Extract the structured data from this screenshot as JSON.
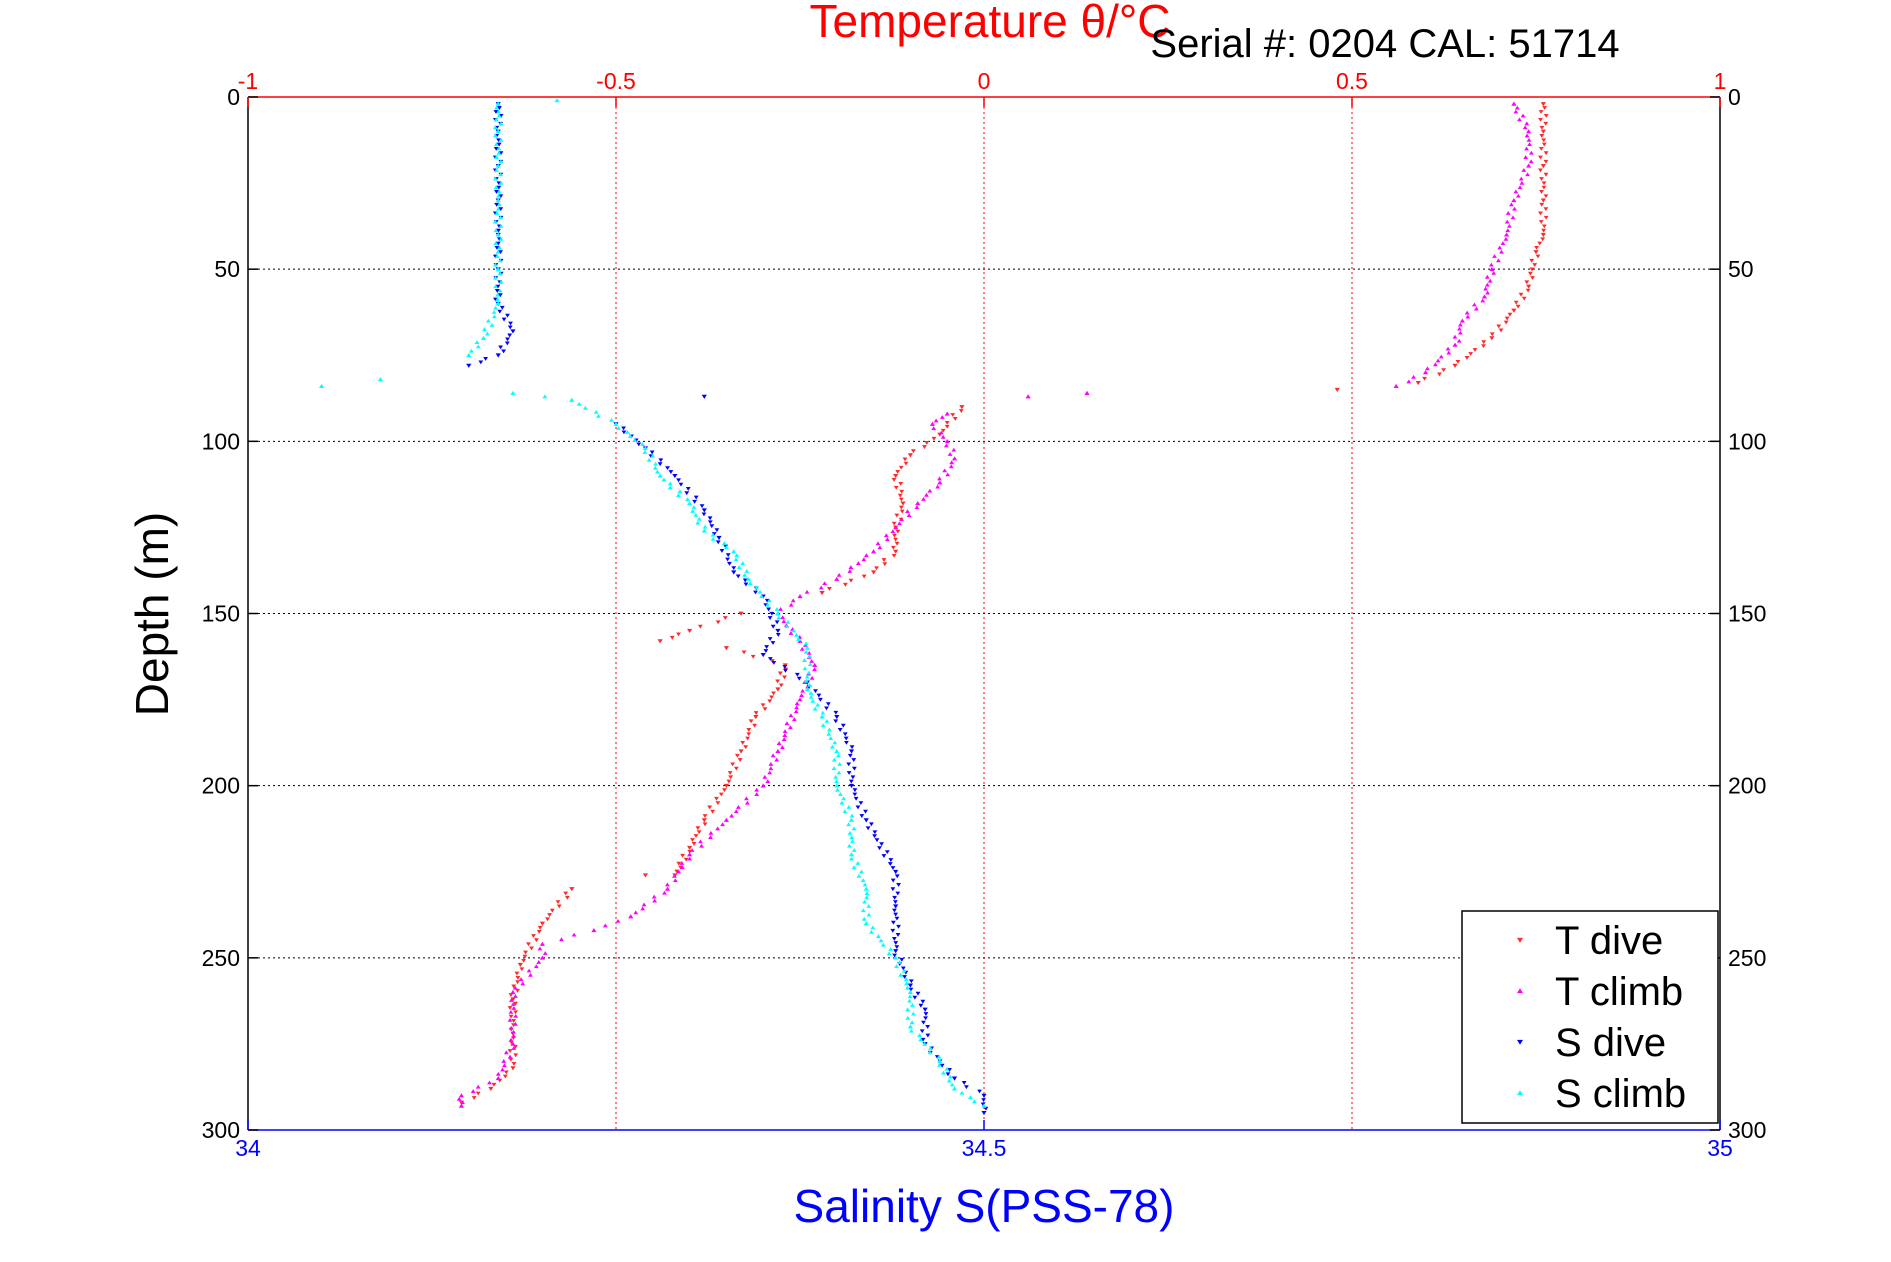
{
  "title_temperature": "Temperature θ/°C",
  "serial_label": "Serial #: 0204   CAL: 51714",
  "colors": {
    "temperature_axis": "#ff0000",
    "salinity_axis": "#0000ff",
    "t_dive": "#ff2a2a",
    "t_climb": "#ff00ff",
    "s_dive": "#0000ff",
    "s_climb": "#00ffff"
  },
  "chart_data": {
    "type": "scatter",
    "title": "Temperature θ/°C",
    "ylabel": "Depth (m)",
    "xlabel": "Salinity S(PSS-78)",
    "x_top": {
      "label": "Temperature θ/°C",
      "lim": [
        -1,
        1
      ],
      "ticks": [
        -1,
        -0.5,
        0,
        0.5,
        1
      ],
      "tick_labels": [
        "-1",
        "-0.5",
        "0",
        "0.5",
        "1"
      ]
    },
    "x_bottom": {
      "label": "Salinity S(PSS-78)",
      "lim": [
        34,
        35
      ],
      "ticks": [
        34,
        34.5,
        35
      ],
      "tick_labels": [
        "34",
        "34.5",
        "35"
      ]
    },
    "ylim": [
      300,
      0
    ],
    "yticks": [
      0,
      50,
      100,
      150,
      200,
      250,
      300
    ],
    "ytick_labels": [
      "0",
      "50",
      "100",
      "150",
      "200",
      "250",
      "300"
    ],
    "grid": true,
    "legend_position": "bottom-right",
    "series": [
      {
        "name": "T dive",
        "axis": "temperature",
        "marker": "triangle-down",
        "points": [
          [
            0.76,
            2
          ],
          [
            0.76,
            10
          ],
          [
            0.76,
            20
          ],
          [
            0.76,
            30
          ],
          [
            0.76,
            40
          ],
          [
            0.75,
            45
          ],
          [
            0.74,
            55
          ],
          [
            0.72,
            62
          ],
          [
            0.69,
            70
          ],
          [
            0.64,
            78
          ],
          [
            0.59,
            83
          ],
          [
            0.48,
            85
          ],
          [
            -0.03,
            90
          ],
          [
            -0.06,
            98
          ],
          [
            -0.1,
            104
          ],
          [
            -0.12,
            110
          ],
          [
            -0.11,
            118
          ],
          [
            -0.12,
            125
          ],
          [
            -0.12,
            132
          ],
          [
            -0.15,
            138
          ],
          [
            -0.22,
            144
          ],
          [
            -0.33,
            150
          ],
          [
            -0.4,
            155
          ],
          [
            -0.44,
            158
          ],
          [
            -0.35,
            160
          ],
          [
            -0.27,
            165
          ],
          [
            -0.28,
            172
          ],
          [
            -0.31,
            180
          ],
          [
            -0.33,
            190
          ],
          [
            -0.35,
            200
          ],
          [
            -0.38,
            210
          ],
          [
            -0.4,
            218
          ],
          [
            -0.42,
            226
          ],
          [
            -0.46,
            226
          ],
          [
            -0.56,
            230
          ],
          [
            -0.6,
            240
          ],
          [
            -0.63,
            252
          ],
          [
            -0.64,
            262
          ],
          [
            -0.64,
            272
          ],
          [
            -0.64,
            282
          ],
          [
            -0.67,
            288
          ],
          [
            -0.71,
            292
          ]
        ]
      },
      {
        "name": "T climb",
        "axis": "temperature",
        "marker": "triangle-up",
        "points": [
          [
            0.72,
            2
          ],
          [
            0.74,
            10
          ],
          [
            0.74,
            20
          ],
          [
            0.72,
            30
          ],
          [
            0.71,
            40
          ],
          [
            0.69,
            50
          ],
          [
            0.68,
            58
          ],
          [
            0.65,
            65
          ],
          [
            0.64,
            72
          ],
          [
            0.6,
            80
          ],
          [
            0.56,
            84
          ],
          [
            0.14,
            86
          ],
          [
            0.06,
            87
          ],
          [
            -0.05,
            92
          ],
          [
            -0.07,
            95
          ],
          [
            -0.05,
            100
          ],
          [
            -0.04,
            105
          ],
          [
            -0.06,
            112
          ],
          [
            -0.09,
            118
          ],
          [
            -0.12,
            125
          ],
          [
            -0.15,
            132
          ],
          [
            -0.2,
            140
          ],
          [
            -0.25,
            145
          ],
          [
            -0.28,
            150
          ],
          [
            -0.25,
            158
          ],
          [
            -0.23,
            165
          ],
          [
            -0.25,
            175
          ],
          [
            -0.28,
            190
          ],
          [
            -0.3,
            200
          ],
          [
            -0.35,
            210
          ],
          [
            -0.4,
            220
          ],
          [
            -0.43,
            230
          ],
          [
            -0.48,
            238
          ],
          [
            -0.53,
            242
          ],
          [
            -0.6,
            246
          ],
          [
            -0.6,
            250
          ],
          [
            -0.64,
            260
          ],
          [
            -0.64,
            275
          ],
          [
            -0.66,
            285
          ],
          [
            -0.71,
            290
          ],
          [
            -0.71,
            293
          ]
        ]
      },
      {
        "name": "S dive",
        "axis": "salinity",
        "marker": "triangle-down",
        "points": [
          [
            34.17,
            2
          ],
          [
            34.17,
            10
          ],
          [
            34.17,
            20
          ],
          [
            34.17,
            30
          ],
          [
            34.17,
            40
          ],
          [
            34.17,
            50
          ],
          [
            34.17,
            60
          ],
          [
            34.18,
            68
          ],
          [
            34.17,
            75
          ],
          [
            34.15,
            78
          ],
          [
            34.31,
            87
          ],
          [
            34.25,
            95
          ],
          [
            34.27,
            102
          ],
          [
            34.29,
            110
          ],
          [
            34.31,
            120
          ],
          [
            34.32,
            128
          ],
          [
            34.33,
            138
          ],
          [
            34.35,
            145
          ],
          [
            34.36,
            155
          ],
          [
            34.35,
            162
          ],
          [
            34.38,
            170
          ],
          [
            34.4,
            180
          ],
          [
            34.41,
            190
          ],
          [
            34.41,
            200
          ],
          [
            34.42,
            210
          ],
          [
            34.44,
            225
          ],
          [
            34.44,
            235
          ],
          [
            34.44,
            248
          ],
          [
            34.45,
            258
          ],
          [
            34.46,
            265
          ],
          [
            34.46,
            275
          ],
          [
            34.48,
            285
          ],
          [
            34.5,
            290
          ],
          [
            34.5,
            295
          ]
        ]
      },
      {
        "name": "S climb",
        "axis": "salinity",
        "marker": "triangle-up",
        "points": [
          [
            34.21,
            1
          ],
          [
            34.17,
            2
          ],
          [
            34.17,
            10
          ],
          [
            34.17,
            20
          ],
          [
            34.17,
            30
          ],
          [
            34.17,
            40
          ],
          [
            34.17,
            50
          ],
          [
            34.17,
            60
          ],
          [
            34.16,
            70
          ],
          [
            34.15,
            75
          ],
          [
            34.09,
            82
          ],
          [
            34.05,
            84
          ],
          [
            34.18,
            86
          ],
          [
            34.22,
            88
          ],
          [
            34.25,
            95
          ],
          [
            34.27,
            102
          ],
          [
            34.28,
            110
          ],
          [
            34.3,
            118
          ],
          [
            34.31,
            126
          ],
          [
            34.33,
            132
          ],
          [
            34.34,
            140
          ],
          [
            34.36,
            150
          ],
          [
            34.38,
            160
          ],
          [
            34.38,
            172
          ],
          [
            34.39,
            180
          ],
          [
            34.4,
            190
          ],
          [
            34.4,
            200
          ],
          [
            34.41,
            210
          ],
          [
            34.41,
            220
          ],
          [
            34.42,
            230
          ],
          [
            34.42,
            240
          ],
          [
            34.44,
            250
          ],
          [
            34.45,
            260
          ],
          [
            34.45,
            270
          ],
          [
            34.47,
            280
          ],
          [
            34.48,
            288
          ],
          [
            34.5,
            293
          ]
        ]
      }
    ]
  }
}
